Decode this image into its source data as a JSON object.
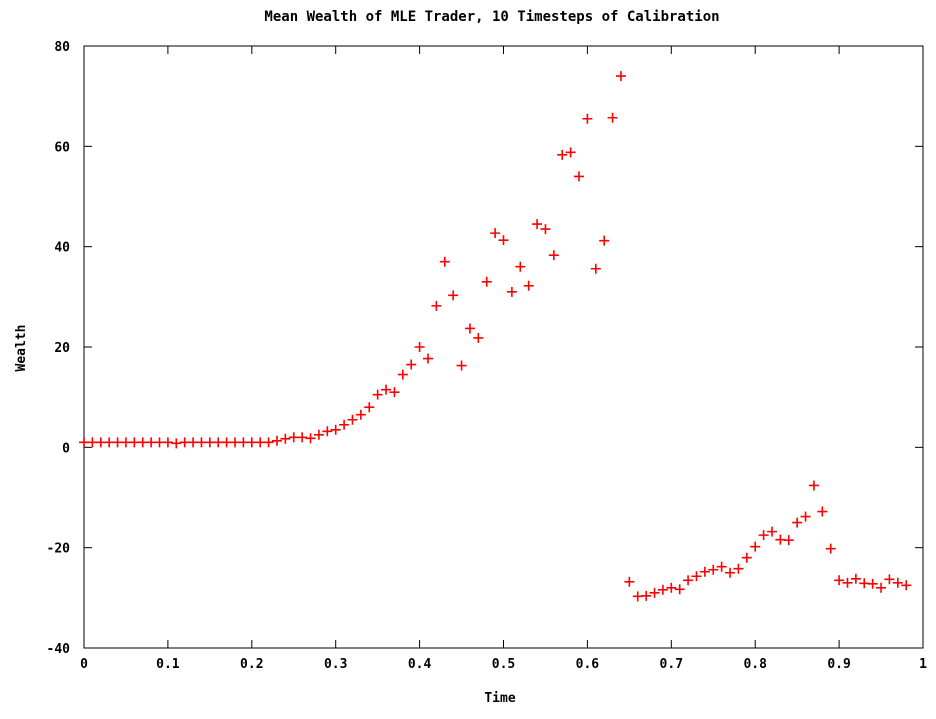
{
  "chart_data": {
    "type": "scatter",
    "title": "Mean Wealth of MLE Trader, 10 Timesteps of Calibration",
    "xlabel": "Time",
    "ylabel": "Wealth",
    "xlim": [
      0,
      1
    ],
    "ylim": [
      -40,
      80
    ],
    "xticks": [
      "0",
      "0.1",
      "0.2",
      "0.3",
      "0.4",
      "0.5",
      "0.6",
      "0.7",
      "0.8",
      "0.9",
      "1"
    ],
    "yticks": [
      "-40",
      "-20",
      "0",
      "20",
      "40",
      "60",
      "80"
    ],
    "grid": false,
    "legend": "none",
    "marker": "+",
    "color": "#ff0000",
    "x": [
      0,
      0.01,
      0.02,
      0.03,
      0.04,
      0.05,
      0.06,
      0.07,
      0.08,
      0.09,
      0.1,
      0.11,
      0.12,
      0.13,
      0.14,
      0.15,
      0.16,
      0.17,
      0.18,
      0.19,
      0.2,
      0.21,
      0.22,
      0.23,
      0.24,
      0.25,
      0.26,
      0.27,
      0.28,
      0.29,
      0.3,
      0.31,
      0.32,
      0.33,
      0.34,
      0.35,
      0.36,
      0.37,
      0.38,
      0.39,
      0.4,
      0.41,
      0.42,
      0.43,
      0.44,
      0.45,
      0.46,
      0.47,
      0.48,
      0.49,
      0.5,
      0.51,
      0.52,
      0.53,
      0.54,
      0.55,
      0.56,
      0.57,
      0.58,
      0.59,
      0.6,
      0.61,
      0.62,
      0.63,
      0.64,
      0.65,
      0.66,
      0.67,
      0.68,
      0.69,
      0.7,
      0.71,
      0.72,
      0.73,
      0.74,
      0.75,
      0.76,
      0.77,
      0.78,
      0.79,
      0.8,
      0.81,
      0.82,
      0.83,
      0.84,
      0.85,
      0.86,
      0.87,
      0.88,
      0.89,
      0.9,
      0.91,
      0.92,
      0.93,
      0.94,
      0.95,
      0.96,
      0.97,
      0.98
    ],
    "y": [
      1,
      1,
      1,
      1,
      1,
      1,
      1,
      1,
      1,
      1,
      1,
      0.8,
      1,
      1,
      1,
      1,
      1,
      1,
      1,
      1,
      1,
      1,
      1,
      1.3,
      1.7,
      2,
      2,
      1.8,
      2.5,
      3.2,
      3.5,
      4.5,
      5.5,
      6.5,
      8,
      10.5,
      11.5,
      11,
      14.5,
      16.5,
      20,
      17.7,
      28.2,
      37,
      30.3,
      16.3,
      23.7,
      21.8,
      33,
      42.7,
      41.3,
      31,
      36,
      32.2,
      44.5,
      43.5,
      38.3,
      58.3,
      58.8,
      54,
      65.5,
      35.6,
      41.2,
      65.7,
      74,
      -26.8,
      -29.7,
      -29.6,
      -29,
      -28.4,
      -28,
      -28.3,
      -26.5,
      -25.7,
      -24.8,
      -24.4,
      -23.8,
      -25,
      -24.2,
      -22,
      -19.8,
      -17.5,
      -16.8,
      -18.4,
      -18.5,
      -15,
      -13.8,
      -7.6,
      -12.8,
      -20.2,
      -26.5,
      -27,
      -26.2,
      -27.1,
      -27.2,
      -28,
      -26.3,
      -27,
      -27.5
    ]
  }
}
